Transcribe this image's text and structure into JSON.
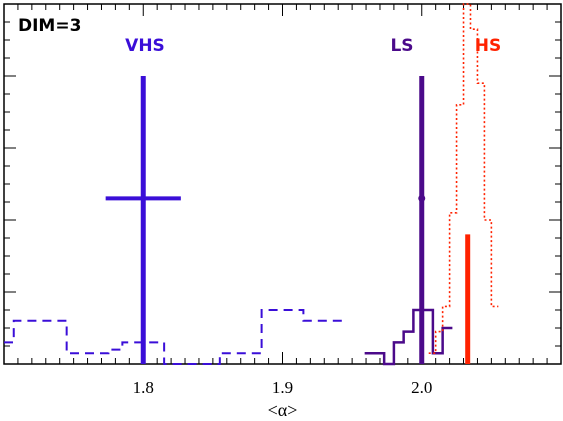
{
  "chart_data": {
    "type": "line",
    "title": "",
    "xlabel": "<α>",
    "ylabel": "",
    "xlim": [
      1.7,
      2.1
    ],
    "ylim": [
      0,
      10
    ],
    "x_ticks": [
      1.8,
      1.9,
      2.0
    ],
    "x_tick_labels": [
      "1.8",
      "1.9",
      "2.0"
    ],
    "y_ticks": [
      0,
      2,
      4,
      6,
      8,
      10
    ],
    "grid": false,
    "annotations": [
      {
        "id": "dim",
        "text": "DIM=3",
        "color": "#000000"
      },
      {
        "id": "vhs",
        "text": "VHS",
        "color": "#3a0ed8"
      },
      {
        "id": "ls",
        "text": "LS",
        "color": "#4b0a8a"
      },
      {
        "id": "hs",
        "text": "HS",
        "color": "#ff2200"
      }
    ],
    "series": [
      {
        "name": "VHS",
        "style": "dashed",
        "color": "#3a0ed8",
        "edges": [
          1.7,
          1.707,
          1.717,
          1.725,
          1.735,
          1.745,
          1.755,
          1.765,
          1.775,
          1.785,
          1.795,
          1.805,
          1.815,
          1.825,
          1.835,
          1.845,
          1.855,
          1.865,
          1.875,
          1.885,
          1.895,
          1.905,
          1.915,
          1.925,
          1.935,
          1.945
        ],
        "counts": [
          0.6,
          1.2,
          1.2,
          1.2,
          1.2,
          0.3,
          0.3,
          0.3,
          0.4,
          0.6,
          0.6,
          0.6,
          0.0,
          0.0,
          0.0,
          0.0,
          0.3,
          0.3,
          0.3,
          1.5,
          1.5,
          1.5,
          1.2,
          1.2,
          1.2
        ]
      },
      {
        "name": "LS",
        "style": "solid",
        "color": "#4b0a8a",
        "edges": [
          1.959,
          1.966,
          1.973,
          1.98,
          1.987,
          1.994,
          2.001,
          2.008,
          2.015,
          2.022
        ],
        "counts": [
          0.3,
          0.3,
          0.0,
          0.6,
          0.9,
          1.5,
          1.5,
          0.3,
          1.0
        ]
      },
      {
        "name": "HS",
        "style": "dotted",
        "color": "#ff2200",
        "edges": [
          2.005,
          2.01,
          2.015,
          2.02,
          2.025,
          2.03,
          2.035,
          2.04,
          2.045,
          2.05,
          2.055
        ],
        "counts": [
          0.3,
          0.9,
          1.6,
          4.2,
          7.2,
          10.0,
          9.3,
          7.8,
          4.0,
          1.6
        ]
      }
    ],
    "markers": [
      {
        "name": "VHS",
        "x": 1.8,
        "y_top": 8.0,
        "y_center": 4.6,
        "xerr": 0.027,
        "color": "#3a0ed8",
        "line_width": "thick"
      },
      {
        "name": "LS",
        "x": 2.0,
        "y_top": 8.0,
        "y_center": 4.6,
        "xerr": 0.0,
        "color": "#4b0a8a",
        "line_width": "thick"
      },
      {
        "name": "HS",
        "x": 2.033,
        "y_top": 3.6,
        "y_center": null,
        "xerr": 0.0,
        "color": "#ff2200",
        "line_width": "thick"
      }
    ]
  }
}
